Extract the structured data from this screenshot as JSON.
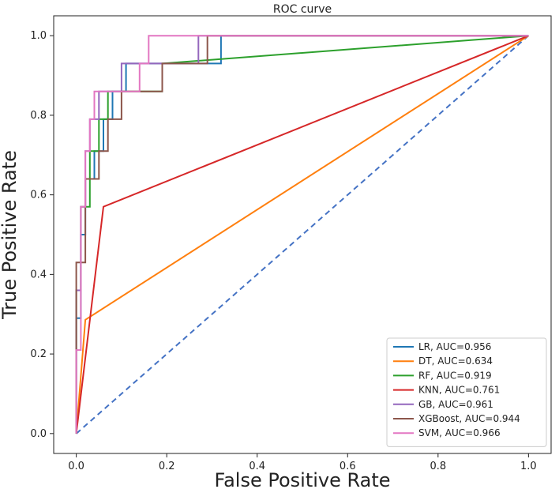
{
  "chart_data": {
    "type": "line",
    "title": "ROC curve",
    "xlabel": "False Positive Rate",
    "ylabel": "True Positive Rate",
    "xlim": [
      -0.05,
      1.05
    ],
    "ylim": [
      -0.05,
      1.05
    ],
    "xticks": [
      0.0,
      0.2,
      0.4,
      0.6,
      0.8,
      1.0
    ],
    "yticks": [
      0.0,
      0.2,
      0.4,
      0.6,
      0.8,
      1.0
    ],
    "xtick_labels": [
      "0.0",
      "0.2",
      "0.4",
      "0.6",
      "0.8",
      "1.0"
    ],
    "ytick_labels": [
      "0.0",
      "0.2",
      "0.4",
      "0.6",
      "0.8",
      "1.0"
    ],
    "legend_position": "lower-right",
    "baseline": {
      "x": [
        0,
        1
      ],
      "y": [
        0,
        1
      ],
      "color": "#4472c4",
      "dashed": true
    },
    "series": [
      {
        "name": "LR, AUC=0.956",
        "color": "#1f77b4",
        "x": [
          0,
          0,
          0.01,
          0.01,
          0.02,
          0.02,
          0.04,
          0.04,
          0.06,
          0.06,
          0.08,
          0.08,
          0.11,
          0.11,
          0.32,
          0.32,
          1.0
        ],
        "y": [
          0,
          0.29,
          0.29,
          0.5,
          0.5,
          0.64,
          0.64,
          0.71,
          0.71,
          0.79,
          0.79,
          0.86,
          0.86,
          0.93,
          0.93,
          1.0,
          1.0
        ]
      },
      {
        "name": "DT, AUC=0.634",
        "color": "#ff7f0e",
        "x": [
          0,
          0.02,
          1.0
        ],
        "y": [
          0,
          0.286,
          1.0
        ]
      },
      {
        "name": "RF, AUC=0.919",
        "color": "#2ca02c",
        "x": [
          0,
          0,
          0.01,
          0.01,
          0.03,
          0.03,
          0.05,
          0.05,
          0.07,
          0.07,
          0.09,
          0.09,
          0.19,
          0.19,
          1.0
        ],
        "y": [
          0,
          0.36,
          0.36,
          0.57,
          0.57,
          0.71,
          0.71,
          0.79,
          0.79,
          0.86,
          0.86,
          0.86,
          0.86,
          0.93,
          1.0
        ]
      },
      {
        "name": "KNN, AUC=0.761",
        "color": "#d62728",
        "x": [
          0,
          0.06,
          1.0
        ],
        "y": [
          0,
          0.57,
          1.0
        ]
      },
      {
        "name": "GB, AUC=0.961",
        "color": "#9467bd",
        "x": [
          0,
          0,
          0.01,
          0.01,
          0.02,
          0.02,
          0.03,
          0.03,
          0.05,
          0.05,
          0.07,
          0.07,
          0.1,
          0.1,
          0.27,
          0.27,
          1.0
        ],
        "y": [
          0,
          0.36,
          0.36,
          0.57,
          0.57,
          0.71,
          0.71,
          0.79,
          0.79,
          0.86,
          0.86,
          0.86,
          0.86,
          0.93,
          0.93,
          1.0,
          1.0
        ]
      },
      {
        "name": "XGBoost, AUC=0.944",
        "color": "#8c564b",
        "x": [
          0,
          0,
          0.02,
          0.02,
          0.05,
          0.05,
          0.07,
          0.07,
          0.1,
          0.1,
          0.19,
          0.19,
          0.29,
          0.29,
          1.0
        ],
        "y": [
          0,
          0.43,
          0.43,
          0.64,
          0.64,
          0.71,
          0.71,
          0.79,
          0.79,
          0.86,
          0.86,
          0.93,
          0.93,
          1.0,
          1.0
        ]
      },
      {
        "name": "SVM, AUC=0.966",
        "color": "#e377c2",
        "x": [
          0,
          0,
          0.01,
          0.01,
          0.02,
          0.02,
          0.03,
          0.03,
          0.04,
          0.04,
          0.08,
          0.08,
          0.14,
          0.14,
          0.16,
          0.16,
          1.0
        ],
        "y": [
          0,
          0.21,
          0.21,
          0.57,
          0.57,
          0.71,
          0.71,
          0.79,
          0.79,
          0.86,
          0.86,
          0.86,
          0.86,
          0.93,
          0.93,
          1.0,
          1.0
        ]
      }
    ]
  }
}
